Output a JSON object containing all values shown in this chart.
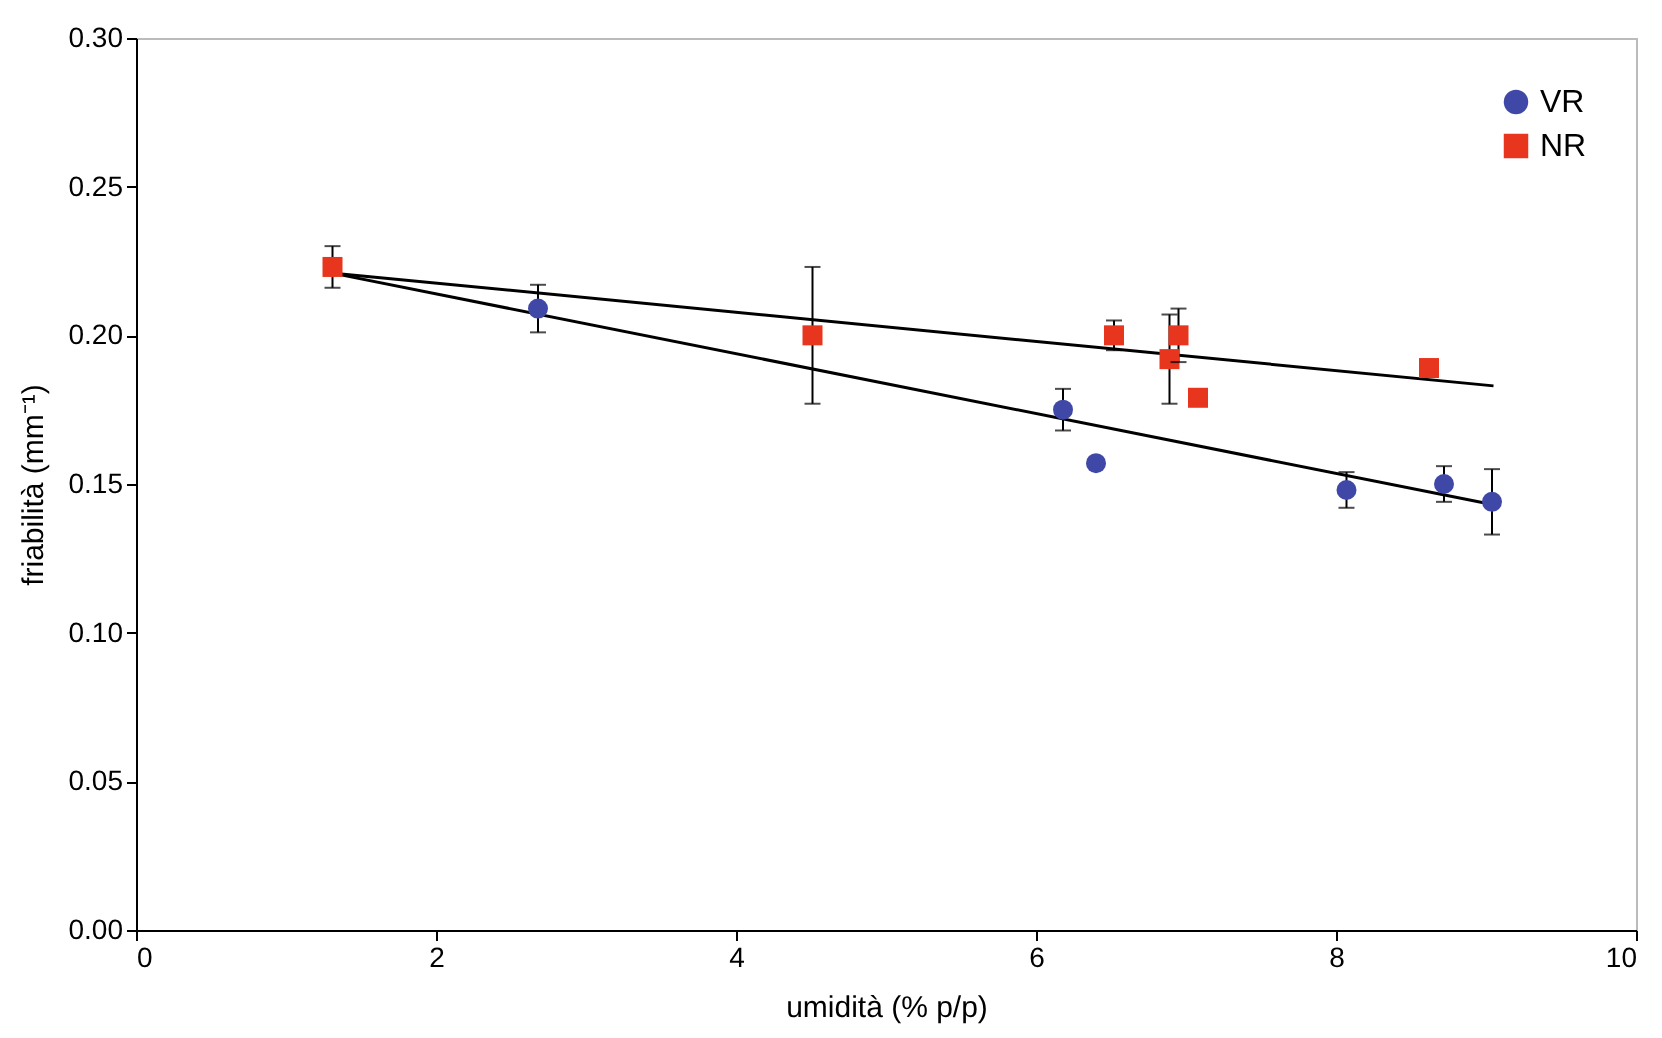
{
  "chart_data": {
    "type": "scatter",
    "xlabel": "umidità (% p/p)",
    "ylabel": "friabilità (mm⁻¹)",
    "xlim": [
      0,
      10
    ],
    "xticks": [
      0,
      2,
      4,
      6,
      8,
      10
    ],
    "ylim": [
      0,
      0.3
    ],
    "yticks": [
      {
        "value": 0,
        "label": "0.00"
      },
      0.05,
      {
        "value": 0.1,
        "label": "0.10"
      },
      0.15,
      {
        "value": 0.2,
        "label": "0.20"
      },
      0.25,
      {
        "value": 0.3,
        "label": "0.30"
      }
    ],
    "grid": false,
    "legend": "top right",
    "series": [
      {
        "name": "VR",
        "color": "#3f48a6",
        "marker": "circle",
        "x": [
          2.68,
          6.18,
          6.4,
          8.07,
          8.72,
          9.04
        ],
        "values": [
          0.209,
          0.175,
          0.157,
          0.148,
          0.15,
          0.144
        ],
        "errors": [
          0.008,
          0.007,
          null,
          0.006,
          0.006,
          0.011
        ]
      },
      {
        "name": "NR",
        "color": "#e8351e",
        "marker": "square",
        "x": [
          1.31,
          4.51,
          6.52,
          6.89,
          6.95,
          7.08,
          8.62
        ],
        "values": [
          0.223,
          0.2,
          0.2,
          0.192,
          0.2,
          0.179,
          0.189
        ],
        "errors": [
          0.007,
          0.023,
          0.005,
          0.015,
          0.009,
          null,
          null
        ]
      },
      {
        "type": "line",
        "color": "#000000",
        "marker": "none",
        "x": [
          1.3,
          9.05
        ],
        "values": [
          0.221,
          0.143
        ]
      },
      {
        "type": "line",
        "color": "#000000",
        "marker": "none",
        "x": [
          1.3,
          9.05
        ],
        "values": [
          0.221,
          0.183
        ]
      }
    ]
  }
}
